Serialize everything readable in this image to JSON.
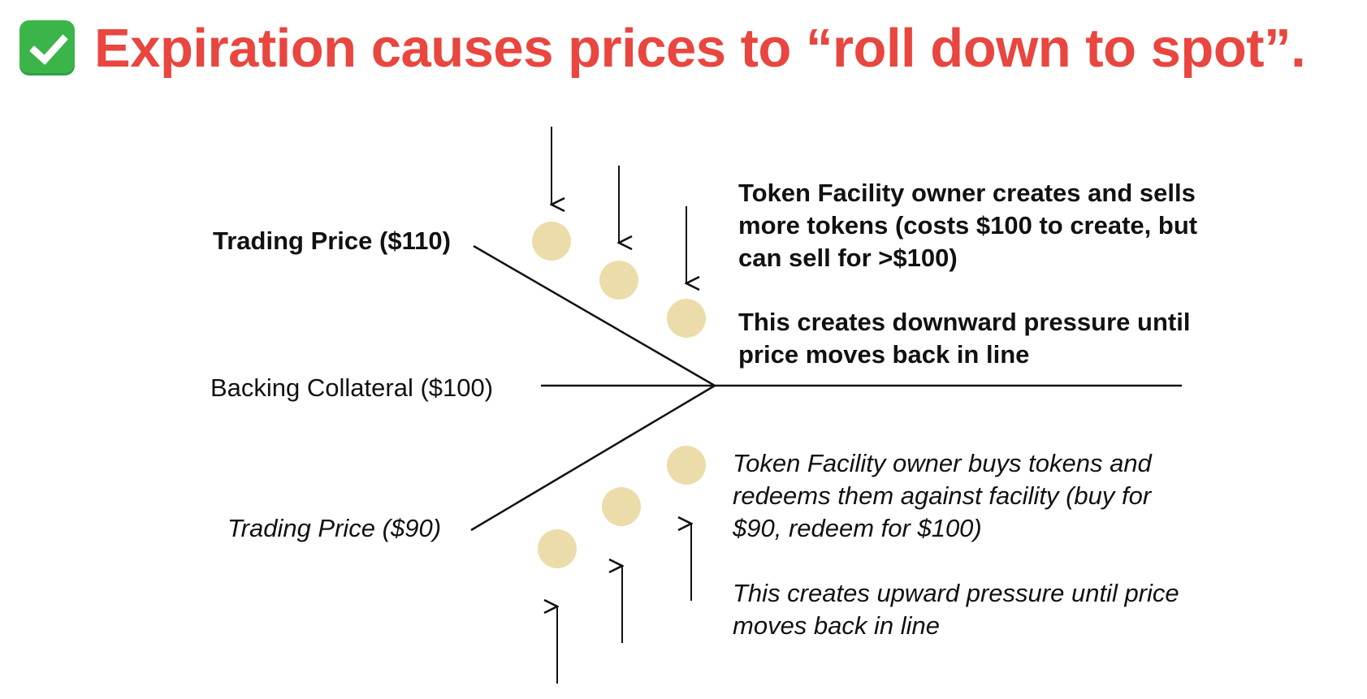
{
  "title": {
    "icon": "check-mark-icon",
    "icon_color": "#3bb54a",
    "text": "Expiration causes prices to “roll down to spot”.",
    "color": "#e8463f"
  },
  "diagram": {
    "line_color": "#111111",
    "token_color": "#ecdcaa",
    "labels": {
      "upper_price": "Trading Price ($110)",
      "collateral": "Backing Collateral ($100)",
      "lower_price": "Trading Price ($90)"
    },
    "upper_text": {
      "line1": "Token Facility owner creates and sells",
      "line2": "more tokens (costs $100 to create, but",
      "line3": "can sell for >$100)",
      "pressure_line1": "This creates downward pressure until",
      "pressure_line2": "price moves back in line"
    },
    "lower_text": {
      "line1": "Token Facility owner buys tokens and",
      "line2": "redeems them against facility (buy for",
      "line3": "$90, redeem for $100)",
      "pressure_line1": "This creates upward pressure until price",
      "pressure_line2": "moves back in line"
    }
  }
}
